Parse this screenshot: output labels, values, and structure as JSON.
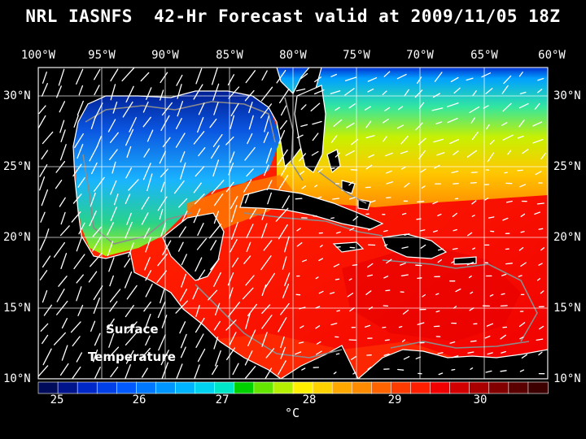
{
  "title": "NRL IASNFS  42-Hr Forecast valid at 2009/11/05 18Z",
  "longitudes": [
    "100°W",
    "95°W",
    "90°W",
    "85°W",
    "80°W",
    "75°W",
    "70°W",
    "65°W",
    "60°W"
  ],
  "latitudes": [
    "30°N",
    "25°N",
    "20°N",
    "15°N",
    "10°N"
  ],
  "annotation": {
    "line1": "Surface",
    "line2": "Temperature"
  },
  "colorbar": {
    "ticks": [
      "25",
      "26",
      "27",
      "28",
      "29",
      "30"
    ],
    "unit": "°C",
    "colors": [
      "#000b5a",
      "#00148c",
      "#0028c8",
      "#0040e6",
      "#005aff",
      "#0078ff",
      "#0096ff",
      "#00b4ff",
      "#00d2f0",
      "#00e6c8",
      "#00d200",
      "#64e600",
      "#b4f000",
      "#fff000",
      "#ffd200",
      "#ffa800",
      "#ff8c00",
      "#ff6400",
      "#ff3c00",
      "#ff1e00",
      "#f00000",
      "#d20000",
      "#aa0000",
      "#820000",
      "#5a0000",
      "#3c0000"
    ]
  },
  "colors": {
    "background": "#000000",
    "land": "#000000",
    "coastline": "#ffffff",
    "bathymetry_contour": "#8c8c8c",
    "grid": "#ffffff",
    "wind_vectors": "#ffffff"
  }
}
